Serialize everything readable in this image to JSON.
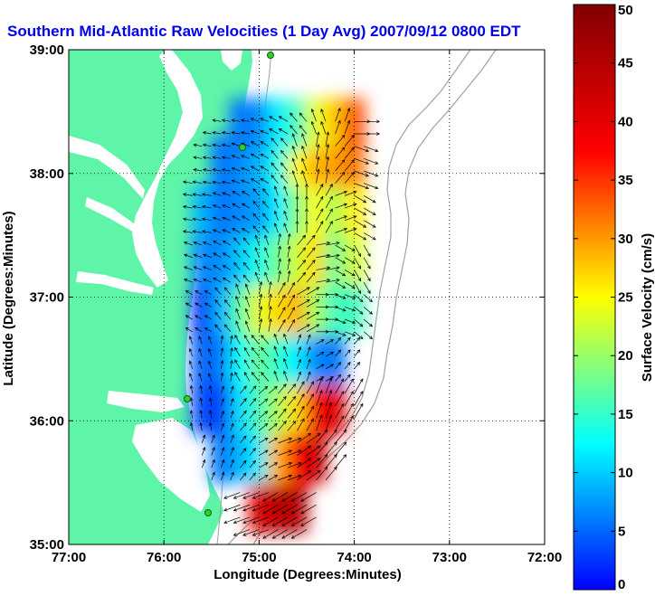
{
  "title": "Southern Mid-Atlantic Raw Velocities (1 Day Avg) 2007/09/12 0800 EDT",
  "map": {
    "xlabel": "Longitude (Degrees:Minutes)",
    "ylabel": "Latitude (Degrees:Minutes)",
    "xlim": [
      -77,
      -72
    ],
    "ylim": [
      35,
      39
    ],
    "x_ticks": [
      {
        "value": -77,
        "label": "77:00"
      },
      {
        "value": -76,
        "label": "76:00"
      },
      {
        "value": -75,
        "label": "75:00"
      },
      {
        "value": -74,
        "label": "74:00"
      },
      {
        "value": -73,
        "label": "73:00"
      },
      {
        "value": -72,
        "label": "72:00"
      }
    ],
    "y_ticks": [
      {
        "value": 35,
        "label": "35:00"
      },
      {
        "value": 36,
        "label": "36:00"
      },
      {
        "value": 37,
        "label": "37:00"
      },
      {
        "value": 38,
        "label": "38:00"
      },
      {
        "value": 39,
        "label": "39:00"
      }
    ],
    "grid": "dotted",
    "land_color": "#5ff5a8",
    "sea_color": "#ffffff",
    "isobath_color": "#a0a0a0",
    "arrow_color": "#000000"
  },
  "colorbar": {
    "label": "Surface Velocity (cm/s)",
    "range": [
      0,
      50
    ],
    "ticks": [
      {
        "value": 0,
        "label": "0"
      },
      {
        "value": 5,
        "label": "5"
      },
      {
        "value": 10,
        "label": "10"
      },
      {
        "value": 15,
        "label": "15"
      },
      {
        "value": 20,
        "label": "20"
      },
      {
        "value": 25,
        "label": "25"
      },
      {
        "value": 30,
        "label": "30"
      },
      {
        "value": 35,
        "label": "35"
      },
      {
        "value": 40,
        "label": "40"
      },
      {
        "value": 45,
        "label": "45"
      },
      {
        "value": 50,
        "label": "50"
      }
    ],
    "colormap": "jet"
  },
  "chart_data": {
    "type": "heatmap",
    "title": "Southern Mid-Atlantic Raw Velocities (1 Day Avg) 2007/09/12 0800 EDT",
    "xlabel": "Longitude (Degrees:Minutes)",
    "ylabel": "Latitude (Degrees:Minutes)",
    "xlim": [
      -77,
      -72
    ],
    "ylim": [
      35,
      39
    ],
    "value_label": "Surface Velocity (cm/s)",
    "value_range": [
      0,
      50
    ],
    "x": [
      -75.6,
      -75.4,
      -75.2,
      -75.0,
      -74.8,
      -74.6,
      -74.4,
      -74.2,
      -74.0
    ],
    "y": [
      35.3,
      35.7,
      36.1,
      36.5,
      36.9,
      37.3,
      37.7,
      38.1,
      38.4
    ],
    "speed": [
      [
        null,
        null,
        null,
        45,
        47,
        47,
        null,
        null,
        null
      ],
      [
        null,
        12,
        15,
        18,
        35,
        44,
        46,
        null,
        null
      ],
      [
        10,
        9,
        17,
        22,
        27,
        33,
        44,
        45,
        null
      ],
      [
        11,
        12,
        19,
        24,
        21,
        18,
        13,
        12,
        null
      ],
      [
        9,
        15,
        23,
        30,
        33,
        35,
        27,
        22,
        22
      ],
      [
        13,
        13,
        16,
        20,
        24,
        29,
        33,
        24,
        29
      ],
      [
        15,
        12,
        13,
        14,
        18,
        25,
        31,
        27,
        32
      ],
      [
        null,
        12,
        13,
        15,
        20,
        31,
        35,
        36,
        38
      ],
      [
        null,
        null,
        12,
        13,
        18,
        22,
        30,
        34,
        40
      ]
    ],
    "direction_deg": [
      [
        null,
        null,
        null,
        250,
        240,
        240,
        null,
        null,
        null
      ],
      [
        null,
        20,
        40,
        60,
        70,
        55,
        40,
        null,
        null
      ],
      [
        350,
        20,
        40,
        50,
        40,
        30,
        20,
        30,
        null
      ],
      [
        340,
        10,
        330,
        320,
        340,
        20,
        60,
        40,
        null
      ],
      [
        300,
        320,
        340,
        10,
        30,
        60,
        90,
        110,
        130
      ],
      [
        290,
        300,
        320,
        340,
        10,
        40,
        80,
        120,
        150
      ],
      [
        280,
        290,
        300,
        320,
        340,
        0,
        30,
        70,
        120
      ],
      [
        null,
        280,
        290,
        300,
        320,
        340,
        10,
        40,
        110
      ],
      [
        null,
        null,
        280,
        290,
        300,
        320,
        340,
        20,
        90
      ]
    ]
  }
}
